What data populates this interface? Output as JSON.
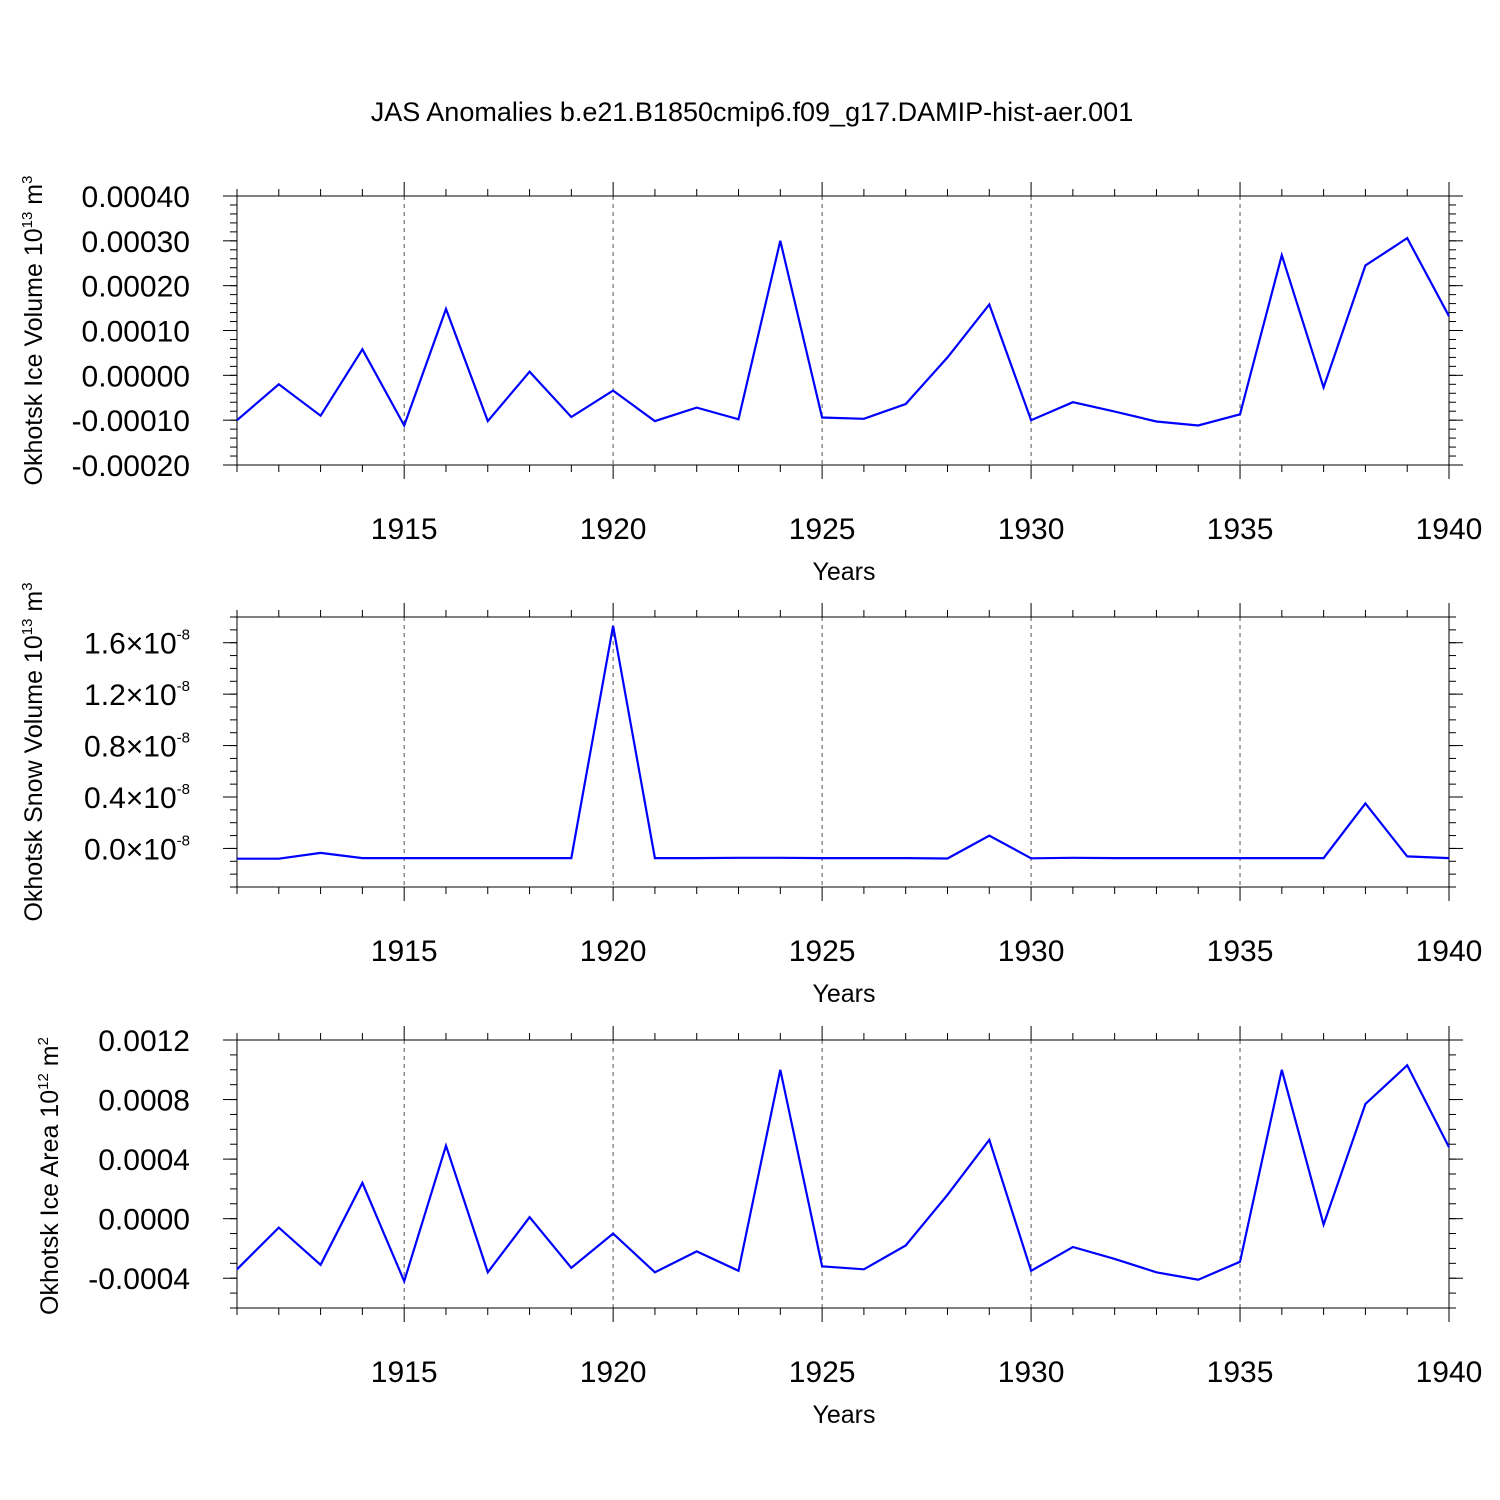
{
  "title": "JAS Anomalies b.e21.B1850cmip6.f09_g17.DAMIP-hist-aer.001",
  "colors": {
    "line": "#0000ff",
    "axis": "#000000",
    "grid": "#555555"
  },
  "chart_data": [
    {
      "type": "line",
      "ylabel": {
        "main": "Okhotsk Ice Volume 10",
        "exp": "13",
        "unit": " m",
        "unit_exp": "3"
      },
      "xlabel": "Years",
      "xlim": [
        1911,
        1940
      ],
      "xticks": [
        "1915",
        "1920",
        "1925",
        "1930",
        "1935",
        "1940"
      ],
      "ylim": [
        -0.0002,
        0.0004
      ],
      "yticks": [
        {
          "value": -0.0002,
          "label": "-0.00020"
        },
        {
          "value": -0.0001,
          "label": "-0.00010"
        },
        {
          "value": 0.0,
          "label": "0.00000"
        },
        {
          "value": 0.0001,
          "label": "0.00010"
        },
        {
          "value": 0.0002,
          "label": "0.00020"
        },
        {
          "value": 0.0003,
          "label": "0.00030"
        },
        {
          "value": 0.0004,
          "label": "0.00040"
        }
      ],
      "grid": "vertical dashed at major x ticks",
      "series": [
        {
          "name": "Okhotsk Ice Volume",
          "x": [
            1911,
            1912,
            1913,
            1914,
            1915,
            1916,
            1917,
            1918,
            1919,
            1920,
            1921,
            1922,
            1923,
            1924,
            1925,
            1926,
            1927,
            1928,
            1929,
            1930,
            1931,
            1932,
            1933,
            1934,
            1935,
            1936,
            1937,
            1938,
            1939,
            1940
          ],
          "values": [
            -0.0001,
            -2e-05,
            -9e-05,
            5.8e-05,
            -0.000112,
            0.000148,
            -0.000102,
            8e-06,
            -9.3e-05,
            -3.4e-05,
            -0.000102,
            -7.2e-05,
            -9.8e-05,
            0.0003,
            -9.4e-05,
            -9.7e-05,
            -6.4e-05,
            4e-05,
            0.000158,
            -0.0001,
            -6e-05,
            -8.1e-05,
            -0.000103,
            -0.000112,
            -8.7e-05,
            0.000268,
            -2.7e-05,
            0.000245,
            0.000306,
            0.000132
          ]
        }
      ]
    },
    {
      "type": "line",
      "ylabel": {
        "main": "Okhotsk Snow Volume 10",
        "exp": "13",
        "unit": " m",
        "unit_exp": "3"
      },
      "xlabel": "Years",
      "xlim": [
        1911,
        1940
      ],
      "xticks": [
        "1915",
        "1920",
        "1925",
        "1930",
        "1935",
        "1940"
      ],
      "ylim": [
        -0.3,
        1.8
      ],
      "yticks": [
        {
          "value": 0.0,
          "mantissa": "0.0",
          "exp": "-8"
        },
        {
          "value": 0.4,
          "mantissa": "0.4",
          "exp": "-8"
        },
        {
          "value": 0.8,
          "mantissa": "0.8",
          "exp": "-8"
        },
        {
          "value": 1.2,
          "mantissa": "1.2",
          "exp": "-8"
        },
        {
          "value": 1.6,
          "mantissa": "1.6",
          "exp": "-8"
        }
      ],
      "value_scale": "×10^-8",
      "grid": "vertical dashed at major x ticks",
      "series": [
        {
          "name": "Okhotsk Snow Volume (×10^-8)",
          "x": [
            1911,
            1912,
            1913,
            1914,
            1915,
            1916,
            1917,
            1918,
            1919,
            1920,
            1921,
            1922,
            1923,
            1924,
            1925,
            1926,
            1927,
            1928,
            1929,
            1930,
            1931,
            1932,
            1933,
            1934,
            1935,
            1936,
            1937,
            1938,
            1939,
            1940
          ],
          "values": [
            -0.08,
            -0.08,
            -0.035,
            -0.075,
            -0.075,
            -0.075,
            -0.075,
            -0.075,
            -0.075,
            1.73,
            -0.075,
            -0.075,
            -0.073,
            -0.073,
            -0.075,
            -0.075,
            -0.075,
            -0.078,
            0.1,
            -0.077,
            -0.073,
            -0.075,
            -0.075,
            -0.075,
            -0.075,
            -0.075,
            -0.075,
            0.35,
            -0.062,
            -0.075
          ]
        }
      ]
    },
    {
      "type": "line",
      "ylabel": {
        "main": "Okhotsk Ice Area 10",
        "exp": "12",
        "unit": " m",
        "unit_exp": "2"
      },
      "xlabel": "Years",
      "xlim": [
        1911,
        1940
      ],
      "xticks": [
        "1915",
        "1920",
        "1925",
        "1930",
        "1935",
        "1940"
      ],
      "ylim": [
        -0.0006,
        0.0012
      ],
      "yticks": [
        {
          "value": -0.0004,
          "label": "-0.0004"
        },
        {
          "value": 0.0,
          "label": "0.0000"
        },
        {
          "value": 0.0004,
          "label": "0.0004"
        },
        {
          "value": 0.0008,
          "label": "0.0008"
        },
        {
          "value": 0.0012,
          "label": "0.0012"
        }
      ],
      "grid": "vertical dashed at major x ticks",
      "series": [
        {
          "name": "Okhotsk Ice Area",
          "x": [
            1911,
            1912,
            1913,
            1914,
            1915,
            1916,
            1917,
            1918,
            1919,
            1920,
            1921,
            1922,
            1923,
            1924,
            1925,
            1926,
            1927,
            1928,
            1929,
            1930,
            1931,
            1932,
            1933,
            1934,
            1935,
            1936,
            1937,
            1938,
            1939,
            1940
          ],
          "values": [
            -0.00034,
            -6e-05,
            -0.00031,
            0.00024,
            -0.00042,
            0.00049,
            -0.00036,
            1e-05,
            -0.00033,
            -0.0001,
            -0.00036,
            -0.00022,
            -0.00035,
            0.001,
            -0.00032,
            -0.00034,
            -0.00018,
            0.00016,
            0.00053,
            -0.00035,
            -0.00019,
            -0.00027,
            -0.00036,
            -0.00041,
            -0.00029,
            0.001,
            -4e-05,
            0.00077,
            0.00103,
            0.00048
          ]
        }
      ]
    }
  ]
}
